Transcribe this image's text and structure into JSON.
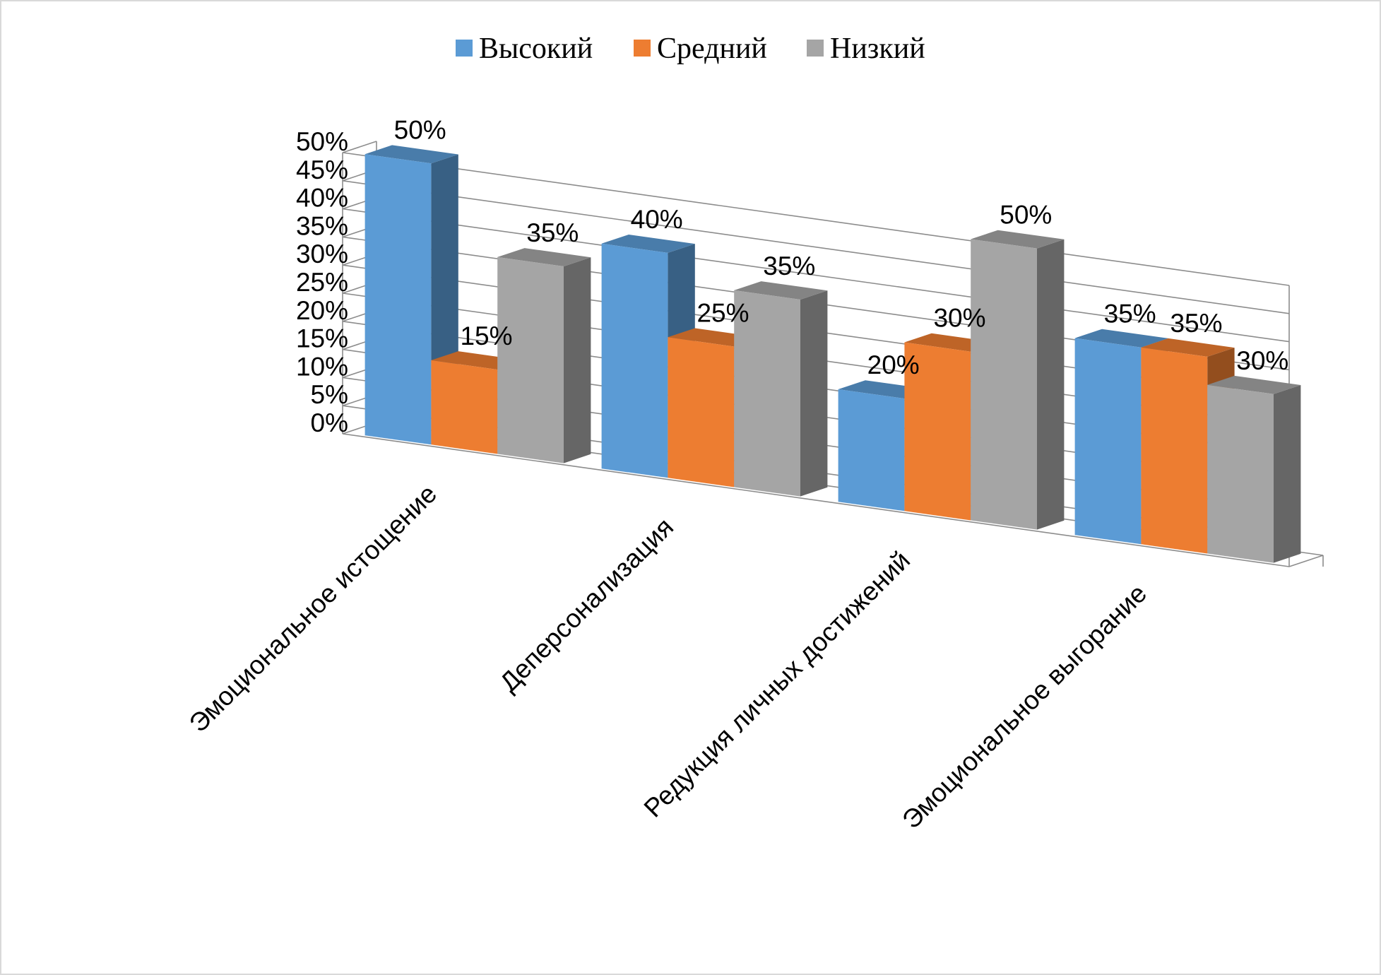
{
  "chart_data": {
    "type": "bar",
    "style": "3d-clustered-column",
    "categories": [
      "Эмоциональное истощение",
      "Деперсонализация",
      "Редукция личных достижений",
      "Эмоциональное выгорание"
    ],
    "series": [
      {
        "name": "Высокий",
        "color": "#5b9bd5",
        "values": [
          50,
          40,
          20,
          35
        ]
      },
      {
        "name": "Средний",
        "color": "#ed7d31",
        "values": [
          15,
          25,
          30,
          35
        ]
      },
      {
        "name": "Низкий",
        "color": "#a5a5a5",
        "values": [
          35,
          35,
          50,
          30
        ]
      }
    ],
    "ylim": [
      0,
      50
    ],
    "yticks": [
      "0%",
      "5%",
      "10%",
      "15%",
      "20%",
      "25%",
      "30%",
      "35%",
      "40%",
      "45%",
      "50%"
    ],
    "value_suffix": "%",
    "legend_position": "top",
    "grid": true
  }
}
